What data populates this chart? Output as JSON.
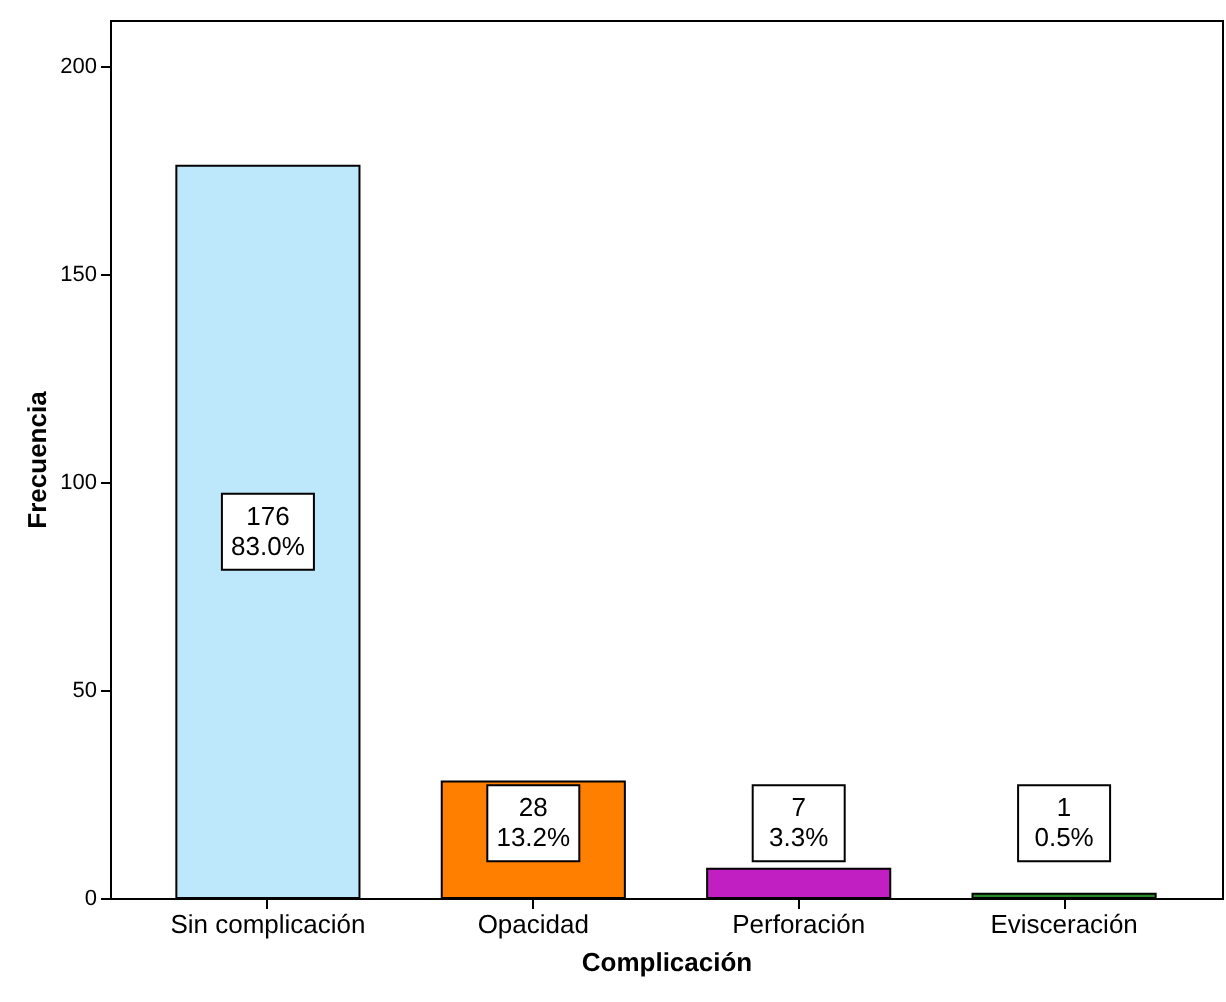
{
  "chart_data": {
    "type": "bar",
    "xlabel": "Complicación",
    "ylabel": "Frecuencia",
    "categories": [
      "Sin complicación",
      "Opacidad",
      "Perforación",
      "Evisceración"
    ],
    "values": [
      176,
      28,
      7,
      1
    ],
    "colors": [
      "#bde7fb",
      "#ff8000",
      "#c21fc2",
      "#2a8a2a"
    ],
    "value_labels": [
      "176\n83.0%",
      "28\n13.2%",
      "7\n3.3%",
      "1\n0.5%"
    ],
    "ylim": [
      0,
      211
    ],
    "yticks": [
      0,
      50,
      100,
      150,
      200
    ],
    "grid": false
  }
}
